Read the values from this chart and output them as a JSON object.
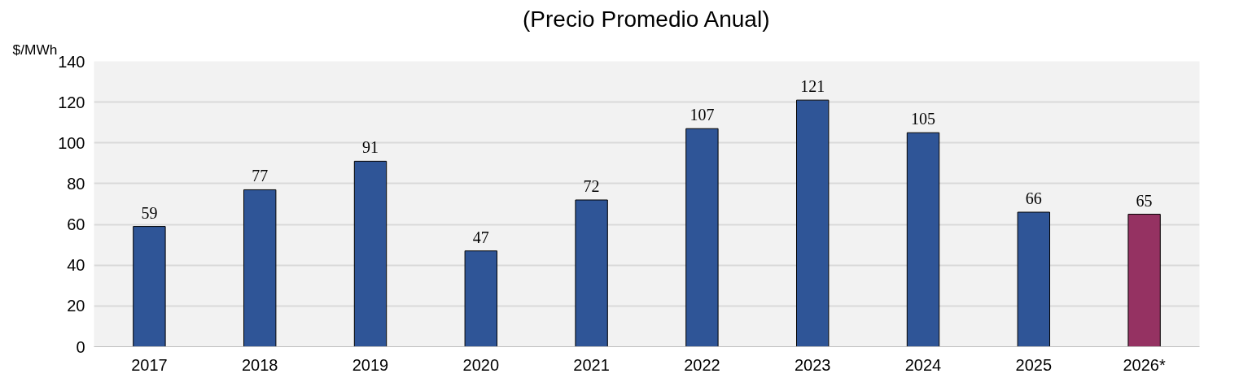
{
  "chart_data": {
    "type": "bar",
    "title": "(Precio Promedio Anual)",
    "ylabel": "$/MWh",
    "categories": [
      "2017",
      "2018",
      "2019",
      "2020",
      "2021",
      "2022",
      "2023",
      "2024",
      "2025",
      "2026*"
    ],
    "values": [
      59,
      77,
      91,
      47,
      72,
      107,
      121,
      105,
      66,
      65
    ],
    "colors": [
      "#2f5597",
      "#2f5597",
      "#2f5597",
      "#2f5597",
      "#2f5597",
      "#2f5597",
      "#2f5597",
      "#2f5597",
      "#2f5597",
      "#953262"
    ],
    "ylim": [
      0,
      140
    ],
    "yticks": [
      0,
      20,
      40,
      60,
      80,
      100,
      120,
      140
    ],
    "grid": "y",
    "data_labels": true
  }
}
